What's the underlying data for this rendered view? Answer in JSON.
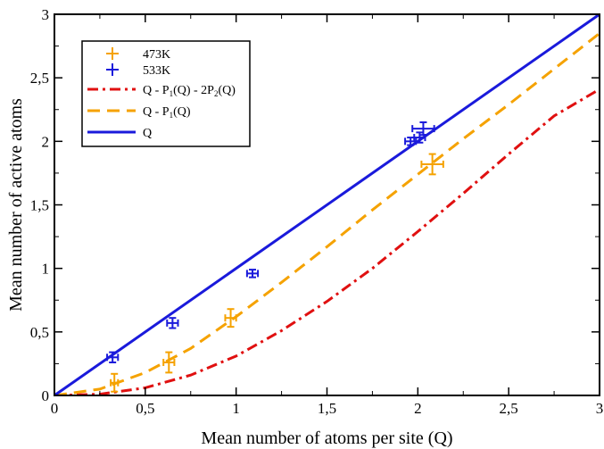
{
  "chart_data": {
    "type": "scatter",
    "xlabel": "Mean number of atoms per site (Q)",
    "ylabel": "Mean number of active atoms",
    "xlim": [
      0,
      3
    ],
    "ylim": [
      0,
      3
    ],
    "xticks": [
      {
        "value": 0,
        "label": "0"
      },
      {
        "value": 0.5,
        "label": "0,5"
      },
      {
        "value": 1,
        "label": "1"
      },
      {
        "value": 1.5,
        "label": "1,5"
      },
      {
        "value": 2,
        "label": "2"
      },
      {
        "value": 2.5,
        "label": "2,5"
      },
      {
        "value": 3,
        "label": "3"
      }
    ],
    "yticks": [
      {
        "value": 0,
        "label": "0"
      },
      {
        "value": 0.5,
        "label": "0,5"
      },
      {
        "value": 1,
        "label": "1"
      },
      {
        "value": 1.5,
        "label": "1,5"
      },
      {
        "value": 2,
        "label": "2"
      },
      {
        "value": 2.5,
        "label": "2,5"
      },
      {
        "value": 3,
        "label": "3"
      }
    ],
    "grid": false,
    "legend_position": "top-left",
    "series": [
      {
        "name": "473K",
        "kind": "points",
        "color": "#f5a200",
        "points": [
          {
            "x": 0.33,
            "y": 0.1,
            "xerr": 0.02,
            "yerr": 0.07
          },
          {
            "x": 0.63,
            "y": 0.26,
            "xerr": 0.03,
            "yerr": 0.08
          },
          {
            "x": 0.97,
            "y": 0.61,
            "xerr": 0.03,
            "yerr": 0.07
          },
          {
            "x": 2.08,
            "y": 1.82,
            "xerr": 0.06,
            "yerr": 0.08
          }
        ]
      },
      {
        "name": "533K",
        "kind": "points",
        "color": "#1a1adb",
        "points": [
          {
            "x": 0.32,
            "y": 0.3,
            "xerr": 0.03,
            "yerr": 0.04
          },
          {
            "x": 0.65,
            "y": 0.57,
            "xerr": 0.03,
            "yerr": 0.04
          },
          {
            "x": 1.09,
            "y": 0.96,
            "xerr": 0.03,
            "yerr": 0.03
          },
          {
            "x": 1.96,
            "y": 2.0,
            "xerr": 0.03,
            "yerr": 0.03
          },
          {
            "x": 2.01,
            "y": 2.03,
            "xerr": 0.03,
            "yerr": 0.04
          },
          {
            "x": 2.03,
            "y": 2.1,
            "xerr": 0.06,
            "yerr": 0.05
          }
        ]
      },
      {
        "name": "Q - P1(Q) - 2P2(Q)",
        "kind": "curve",
        "color": "#e01010",
        "dash": "dashdot",
        "points": [
          {
            "x": 0,
            "y": 0
          },
          {
            "x": 0.25,
            "y": 0.01
          },
          {
            "x": 0.5,
            "y": 0.06
          },
          {
            "x": 0.75,
            "y": 0.16
          },
          {
            "x": 1.0,
            "y": 0.31
          },
          {
            "x": 1.25,
            "y": 0.51
          },
          {
            "x": 1.5,
            "y": 0.74
          },
          {
            "x": 1.75,
            "y": 1.0
          },
          {
            "x": 2.0,
            "y": 1.29
          },
          {
            "x": 2.25,
            "y": 1.59
          },
          {
            "x": 2.5,
            "y": 1.9
          },
          {
            "x": 2.75,
            "y": 2.2
          },
          {
            "x": 3.0,
            "y": 2.41
          }
        ]
      },
      {
        "name": "Q - P1(Q)",
        "kind": "curve",
        "color": "#f5a200",
        "dash": "dashed",
        "points": [
          {
            "x": 0,
            "y": 0
          },
          {
            "x": 0.25,
            "y": 0.05
          },
          {
            "x": 0.5,
            "y": 0.18
          },
          {
            "x": 0.75,
            "y": 0.37
          },
          {
            "x": 1.0,
            "y": 0.62
          },
          {
            "x": 1.25,
            "y": 0.89
          },
          {
            "x": 1.5,
            "y": 1.17
          },
          {
            "x": 1.75,
            "y": 1.46
          },
          {
            "x": 2.0,
            "y": 1.74
          },
          {
            "x": 2.25,
            "y": 2.02
          },
          {
            "x": 2.5,
            "y": 2.29
          },
          {
            "x": 2.75,
            "y": 2.57
          },
          {
            "x": 3.0,
            "y": 2.85
          }
        ]
      },
      {
        "name": "Q",
        "kind": "curve",
        "color": "#1a1adb",
        "dash": "solid",
        "points": [
          {
            "x": 0,
            "y": 0
          },
          {
            "x": 3,
            "y": 3
          }
        ]
      }
    ]
  },
  "legend": {
    "items": [
      {
        "kind": "marker",
        "color": "#f5a200",
        "text": "473K"
      },
      {
        "kind": "marker",
        "color": "#1a1adb",
        "text": "533K"
      },
      {
        "kind": "line",
        "color": "#e01010",
        "dash": "dashdot",
        "parts": [
          "Q - P",
          "1",
          "(Q) - 2P",
          "2",
          "(Q)"
        ]
      },
      {
        "kind": "line",
        "color": "#f5a200",
        "dash": "dashed",
        "parts": [
          "Q - P",
          "1",
          "(Q)"
        ]
      },
      {
        "kind": "line",
        "color": "#1a1adb",
        "dash": "solid",
        "parts": [
          "Q"
        ]
      }
    ]
  }
}
